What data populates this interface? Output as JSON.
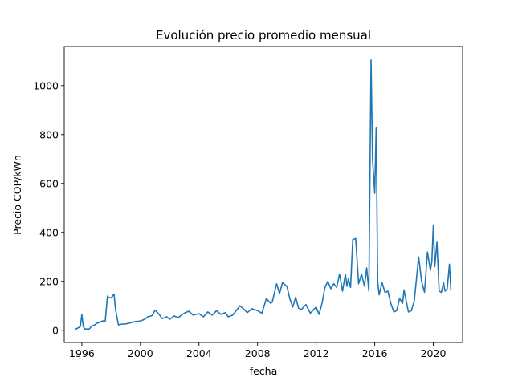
{
  "chart_data": {
    "type": "line",
    "title": "Evolución precio promedio mensual",
    "xlabel": "fecha",
    "ylabel": "Precio COP/kWh",
    "xlim": [
      1994.8,
      2022.0
    ],
    "ylim": [
      -50,
      1160
    ],
    "x_ticks": [
      1996,
      2000,
      2004,
      2008,
      2012,
      2016,
      2020
    ],
    "y_ticks": [
      0,
      200,
      400,
      600,
      800,
      1000
    ],
    "grid": false,
    "line_color": "#1f77b4",
    "series": [
      {
        "name": "",
        "x": [
          1995.6,
          1995.9,
          1996.0,
          1996.1,
          1996.2,
          1996.35,
          1996.5,
          1996.7,
          1996.9,
          1997.0,
          1997.2,
          1997.4,
          1997.6,
          1997.75,
          1997.8,
          1998.0,
          1998.2,
          1998.3,
          1998.5,
          1998.7,
          1999.0,
          1999.3,
          1999.6,
          2000.0,
          2000.3,
          2000.5,
          2000.8,
          2001.0,
          2001.2,
          2001.5,
          2001.8,
          2002.0,
          2002.3,
          2002.6,
          2002.8,
          2003.0,
          2003.3,
          2003.6,
          2004.0,
          2004.3,
          2004.6,
          2004.9,
          2005.2,
          2005.5,
          2005.8,
          2006.0,
          2006.3,
          2006.6,
          2006.8,
          2007.0,
          2007.3,
          2007.6,
          2008.0,
          2008.3,
          2008.6,
          2008.9,
          2009.0,
          2009.3,
          2009.5,
          2009.7,
          2009.9,
          2010.0,
          2010.2,
          2010.4,
          2010.6,
          2010.8,
          2011.0,
          2011.3,
          2011.6,
          2012.0,
          2012.2,
          2012.4,
          2012.6,
          2012.8,
          2013.0,
          2013.2,
          2013.4,
          2013.6,
          2013.8,
          2014.0,
          2014.1,
          2014.2,
          2014.35,
          2014.5,
          2014.7,
          2014.9,
          2015.1,
          2015.3,
          2015.45,
          2015.6,
          2015.75,
          2015.85,
          2016.0,
          2016.1,
          2016.2,
          2016.3,
          2016.5,
          2016.7,
          2016.9,
          2017.1,
          2017.3,
          2017.5,
          2017.7,
          2017.9,
          2018.0,
          2018.3,
          2018.5,
          2018.7,
          2019.0,
          2019.2,
          2019.4,
          2019.6,
          2019.8,
          2019.9,
          2020.0,
          2020.1,
          2020.25,
          2020.4,
          2020.55,
          2020.7,
          2020.8,
          2020.95,
          2021.1,
          2021.2
        ],
        "y": [
          5,
          15,
          65,
          15,
          5,
          5,
          5,
          18,
          22,
          28,
          32,
          38,
          38,
          140,
          135,
          132,
          148,
          85,
          22,
          25,
          26,
          30,
          35,
          38,
          45,
          55,
          60,
          82,
          70,
          48,
          55,
          45,
          58,
          52,
          62,
          70,
          78,
          62,
          68,
          55,
          75,
          62,
          80,
          65,
          72,
          55,
          62,
          85,
          100,
          90,
          72,
          88,
          80,
          70,
          130,
          110,
          115,
          190,
          150,
          195,
          185,
          180,
          130,
          95,
          135,
          90,
          85,
          105,
          70,
          95,
          65,
          110,
          175,
          200,
          170,
          190,
          175,
          230,
          160,
          230,
          180,
          210,
          175,
          370,
          375,
          190,
          230,
          180,
          255,
          160,
          1105,
          700,
          560,
          830,
          200,
          145,
          195,
          155,
          160,
          110,
          75,
          80,
          130,
          110,
          165,
          75,
          80,
          120,
          300,
          200,
          155,
          320,
          245,
          280,
          430,
          260,
          360,
          160,
          155,
          195,
          160,
          170,
          270,
          165
        ]
      }
    ]
  }
}
